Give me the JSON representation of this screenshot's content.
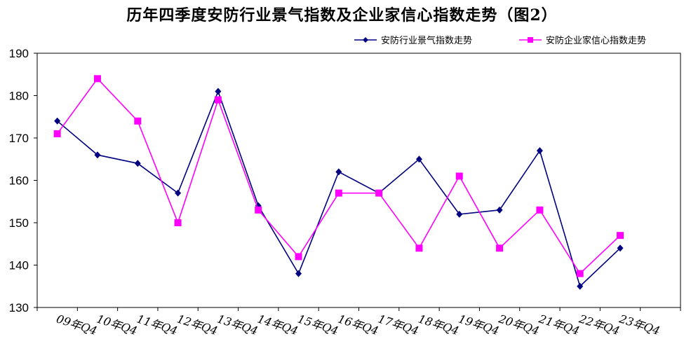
{
  "chart_data": {
    "type": "line",
    "title": "历年四季度安防行业景气指数及企业家信心指数走势（图2）",
    "categories": [
      "09年Q4",
      "10年Q4",
      "11年Q4",
      "12年Q4",
      "13年Q4",
      "14年Q4",
      "15年Q4",
      "16年Q4",
      "17年Q4",
      "18年Q4",
      "19年Q4",
      "20年Q4",
      "21年Q4",
      "22年Q4",
      "23年Q4"
    ],
    "ylim": [
      130,
      190
    ],
    "yticks": [
      130,
      140,
      150,
      160,
      170,
      180,
      190
    ],
    "grid": false,
    "legend_position": "top-right",
    "series": [
      {
        "name": "安防行业景气指数走势",
        "color": "#000080",
        "marker": "diamond",
        "values": [
          174,
          166,
          164,
          157,
          181,
          154,
          138,
          162,
          157,
          165,
          152,
          153,
          167,
          135,
          144
        ]
      },
      {
        "name": "安防企业家信心指数走势",
        "color": "#FF00FF",
        "marker": "square",
        "values": [
          171,
          184,
          174,
          150,
          179,
          153,
          142,
          157,
          157,
          144,
          161,
          144,
          153,
          138,
          147
        ]
      }
    ]
  }
}
